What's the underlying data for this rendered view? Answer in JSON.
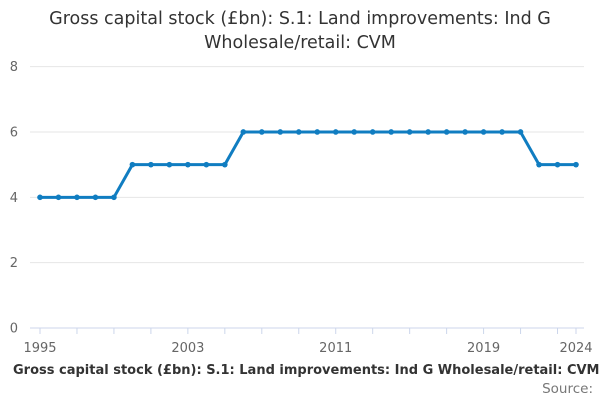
{
  "title": {
    "line1": "Gross capital stock (£bn): S.1: Land improvements: Ind G",
    "line2": "Wholesale/retail: CVM"
  },
  "legend": {
    "label": "Gross capital stock (£bn): S.1: Land improvements: Ind G Wholesale/retail: CVM"
  },
  "source": {
    "label": "Source:"
  },
  "colors": {
    "series": "#107dc1",
    "gridline": "#e6e6e6",
    "axis": "#ccd6eb",
    "axis_label": "#666666",
    "title": "#333333"
  },
  "chart_data": {
    "type": "line",
    "title": "Gross capital stock (£bn): S.1: Land improvements: Ind G Wholesale/retail: CVM",
    "xlabel": "",
    "ylabel": "",
    "ylim": [
      0,
      8
    ],
    "yticks": [
      0,
      2,
      4,
      6,
      8
    ],
    "x_range": [
      1995,
      2024
    ],
    "x_tick_years": [
      1995,
      1997,
      1999,
      2001,
      2003,
      2005,
      2007,
      2009,
      2011,
      2013,
      2015,
      2017,
      2019,
      2021,
      2023,
      2024
    ],
    "x_label_years": [
      1995,
      2003,
      2011,
      2019,
      2024
    ],
    "grid": true,
    "legend_position": "bottom-left",
    "series": [
      {
        "name": "Gross capital stock (£bn): S.1: Land improvements: Ind G Wholesale/retail: CVM",
        "x": [
          1995,
          1996,
          1997,
          1998,
          1999,
          2000,
          2001,
          2002,
          2003,
          2004,
          2005,
          2006,
          2007,
          2008,
          2009,
          2010,
          2011,
          2012,
          2013,
          2014,
          2015,
          2016,
          2017,
          2018,
          2019,
          2020,
          2021,
          2022,
          2023,
          2024
        ],
        "values": [
          4,
          4,
          4,
          4,
          4,
          5,
          5,
          5,
          5,
          5,
          5,
          6,
          6,
          6,
          6,
          6,
          6,
          6,
          6,
          6,
          6,
          6,
          6,
          6,
          6,
          6,
          6,
          5,
          5,
          5
        ]
      }
    ]
  }
}
